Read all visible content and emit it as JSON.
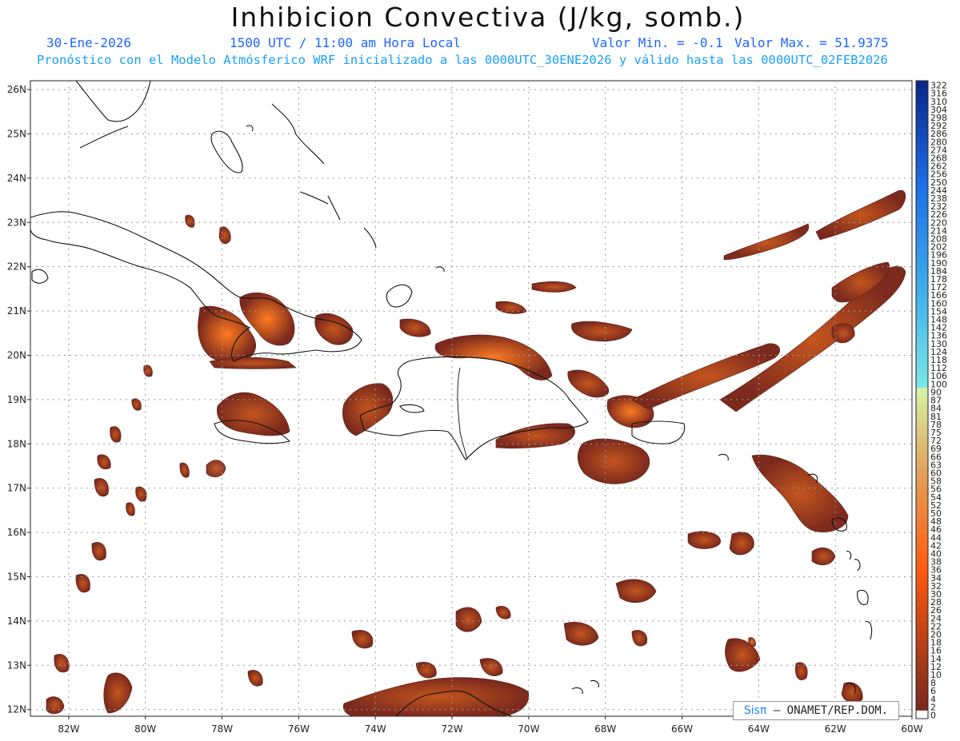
{
  "header": {
    "title": "Inhibicion Convectiva (J/kg, somb.)",
    "date": "30-Ene-2026",
    "time": "1500 UTC / 11:00 am Hora Local",
    "min_label": "Valor Min. = -0.1",
    "max_label": "Valor Max. = 51.9375",
    "subtitle": "Pronóstico con el Modelo Atmósferico WRF inicializado a las 0000UTC_30ENE2026 y válido hasta las  0000UTC_02FEB2026"
  },
  "map": {
    "lon_range": [
      -83,
      -60
    ],
    "lat_range": [
      11.85,
      26.2
    ],
    "lon_ticks": [
      "82W",
      "80W",
      "78W",
      "76W",
      "74W",
      "72W",
      "70W",
      "68W",
      "66W",
      "64W",
      "62W",
      "60W"
    ],
    "lat_ticks": [
      "26N",
      "25N",
      "24N",
      "23N",
      "22N",
      "21N",
      "20N",
      "19N",
      "18N",
      "17N",
      "16N",
      "15N",
      "14N",
      "13N",
      "12N"
    ],
    "grid": true,
    "colors": {
      "text_header": "#1e66ff",
      "text_sub": "#18a0ff",
      "field_dark": "#7c2a1e",
      "field_mid": "#a8461e",
      "field_hot": "#ff7a20",
      "coast": "#111111"
    }
  },
  "colorbar": {
    "labels": [
      "322",
      "316",
      "310",
      "304",
      "298",
      "292",
      "286",
      "280",
      "274",
      "268",
      "262",
      "256",
      "250",
      "244",
      "238",
      "232",
      "226",
      "220",
      "214",
      "208",
      "202",
      "196",
      "190",
      "184",
      "178",
      "172",
      "166",
      "160",
      "154",
      "148",
      "142",
      "136",
      "130",
      "124",
      "118",
      "112",
      "106",
      "100",
      "90",
      "87",
      "84",
      "81",
      "78",
      "75",
      "72",
      "69",
      "66",
      "63",
      "60",
      "58",
      "56",
      "54",
      "52",
      "50",
      "48",
      "46",
      "44",
      "42",
      "40",
      "38",
      "36",
      "34",
      "32",
      "30",
      "28",
      "26",
      "24",
      "22",
      "20",
      "18",
      "16",
      "14",
      "12",
      "10",
      "8",
      "6",
      "4",
      "2",
      "0"
    ]
  },
  "credit": {
    "brand": "Sisπ",
    "text": " – ONAMET/REP.DOM."
  }
}
